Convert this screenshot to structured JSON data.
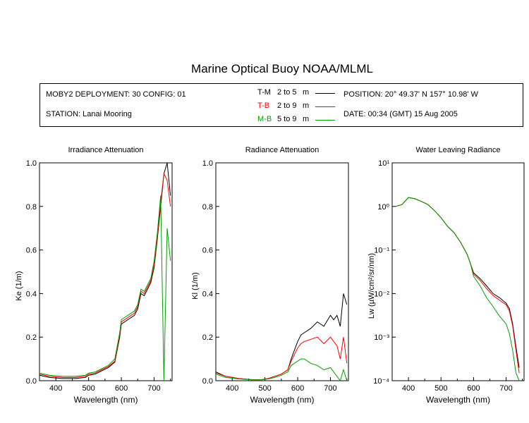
{
  "title": "Marine Optical Buoy NOAA/MLML",
  "info": {
    "deployment": "MOBY2 DEPLOYMENT: 30 CONFIG: 01",
    "station": "STATION: Lanai Mooring",
    "position": "POSITION: 20° 49.37' N   157° 10.98' W",
    "date": "DATE: 00:34 (GMT) 15 Aug 2005",
    "legend": [
      {
        "key": "T-M",
        "range": "2 to 5",
        "unit": "m",
        "color": "#000000"
      },
      {
        "key": "T-B",
        "range": "2 to 9",
        "unit": "m",
        "color": "#ff0000"
      },
      {
        "key": "M-B",
        "range": "5 to 9",
        "unit": "m",
        "color": "#00a000"
      }
    ]
  },
  "chart_data": [
    {
      "type": "line",
      "title": "Irradiance Attenuation",
      "xlabel": "Wavelength (nm)",
      "ylabel": "Ke  (1/m)",
      "xlim": [
        350,
        755
      ],
      "ylim": [
        0.0,
        1.0
      ],
      "xticks": [
        "400",
        "500",
        "600",
        "700"
      ],
      "yticks": [
        "0.0",
        "0.2",
        "0.4",
        "0.6",
        "0.8",
        "1.0"
      ],
      "x": [
        350,
        380,
        420,
        460,
        490,
        500,
        520,
        540,
        560,
        580,
        595,
        600,
        620,
        640,
        650,
        660,
        670,
        680,
        690,
        700,
        710,
        720,
        730,
        740,
        750
      ],
      "series": [
        {
          "name": "T-M",
          "color": "#000000",
          "values": [
            0.025,
            0.015,
            0.01,
            0.01,
            0.015,
            0.025,
            0.03,
            0.045,
            0.06,
            0.085,
            0.2,
            0.26,
            0.28,
            0.3,
            0.33,
            0.4,
            0.39,
            0.42,
            0.45,
            0.52,
            0.65,
            0.8,
            0.95,
            1.0,
            0.85
          ]
        },
        {
          "name": "T-B",
          "color": "#ff0000",
          "values": [
            0.03,
            0.02,
            0.015,
            0.015,
            0.02,
            0.03,
            0.035,
            0.05,
            0.065,
            0.09,
            0.21,
            0.27,
            0.29,
            0.31,
            0.34,
            0.41,
            0.4,
            0.43,
            0.46,
            0.53,
            0.66,
            0.82,
            0.95,
            0.92,
            0.8
          ]
        },
        {
          "name": "M-B",
          "color": "#00a000",
          "values": [
            0.035,
            0.025,
            0.02,
            0.02,
            0.025,
            0.035,
            0.04,
            0.055,
            0.07,
            0.1,
            0.22,
            0.28,
            0.3,
            0.32,
            0.35,
            0.42,
            0.41,
            0.44,
            0.47,
            0.55,
            0.68,
            0.85,
            0.0,
            0.7,
            0.55
          ]
        }
      ]
    },
    {
      "type": "line",
      "title": "Radiance Attenuation",
      "xlabel": "Wavelength (nm)",
      "ylabel": "Kl  (1/m)",
      "xlim": [
        350,
        755
      ],
      "ylim": [
        0.0,
        1.0
      ],
      "xticks": [
        "400",
        "500",
        "600",
        "700"
      ],
      "yticks": [
        "0.0",
        "0.2",
        "0.4",
        "0.6",
        "0.8",
        "1.0"
      ],
      "x": [
        350,
        380,
        420,
        460,
        490,
        510,
        530,
        550,
        570,
        580,
        590,
        600,
        610,
        620,
        640,
        660,
        680,
        700,
        710,
        720,
        730,
        740,
        750
      ],
      "series": [
        {
          "name": "T-M",
          "color": "#000000",
          "values": [
            0.04,
            0.02,
            0.01,
            0.005,
            0.005,
            0.01,
            0.02,
            0.03,
            0.05,
            0.1,
            0.14,
            0.18,
            0.21,
            0.22,
            0.24,
            0.27,
            0.25,
            0.3,
            0.28,
            0.3,
            0.25,
            0.4,
            0.35
          ]
        },
        {
          "name": "T-B",
          "color": "#ff0000",
          "values": [
            0.035,
            0.02,
            0.01,
            0.005,
            0.005,
            0.01,
            0.02,
            0.03,
            0.05,
            0.09,
            0.12,
            0.15,
            0.17,
            0.18,
            0.19,
            0.2,
            0.17,
            0.2,
            0.18,
            0.16,
            0.1,
            0.2,
            0.08
          ]
        },
        {
          "name": "M-B",
          "color": "#00a000",
          "values": [
            0.03,
            0.015,
            0.008,
            0.004,
            0.004,
            0.008,
            0.015,
            0.025,
            0.04,
            0.07,
            0.08,
            0.09,
            0.1,
            0.1,
            0.08,
            0.07,
            0.05,
            0.06,
            0.04,
            0.02,
            0.0,
            0.05,
            0.0
          ]
        }
      ]
    },
    {
      "type": "line",
      "title": "Water Leaving Radiance",
      "xlabel": "Wavelength (nm)",
      "ylabel": "Lw  (µW/cm²/sr/nm)",
      "yscale": "log",
      "xlim": [
        350,
        755
      ],
      "ylim": [
        0.0001,
        10
      ],
      "xticks": [
        "400",
        "500",
        "600",
        "700"
      ],
      "yticks": [
        "10¹",
        "10⁰",
        "10⁻¹",
        "10⁻²",
        "10⁻³",
        "10⁻⁴"
      ],
      "x": [
        360,
        380,
        400,
        420,
        440,
        460,
        480,
        500,
        520,
        540,
        560,
        580,
        590,
        600,
        620,
        640,
        660,
        680,
        700,
        710,
        720,
        730,
        740
      ],
      "series": [
        {
          "name": "T-M",
          "color": "#000000",
          "values": [
            1.0,
            1.1,
            1.6,
            1.5,
            1.3,
            1.1,
            0.8,
            0.55,
            0.35,
            0.25,
            0.15,
            0.08,
            0.05,
            0.03,
            0.022,
            0.015,
            0.01,
            0.008,
            0.006,
            0.0045,
            0.002,
            0.0006,
            0.0002
          ]
        },
        {
          "name": "T-B",
          "color": "#ff0000",
          "values": [
            1.0,
            1.1,
            1.6,
            1.5,
            1.3,
            1.1,
            0.8,
            0.55,
            0.35,
            0.25,
            0.15,
            0.08,
            0.05,
            0.028,
            0.02,
            0.013,
            0.009,
            0.007,
            0.0055,
            0.004,
            0.0018,
            0.0005,
            0.00015
          ]
        },
        {
          "name": "M-B",
          "color": "#00a000",
          "values": [
            1.0,
            1.1,
            1.6,
            1.5,
            1.3,
            1.1,
            0.8,
            0.55,
            0.35,
            0.25,
            0.15,
            0.08,
            0.05,
            0.025,
            0.015,
            0.008,
            0.005,
            0.003,
            0.002,
            0.0012,
            0.0005,
            0.00015,
            0.0001
          ]
        }
      ]
    }
  ]
}
